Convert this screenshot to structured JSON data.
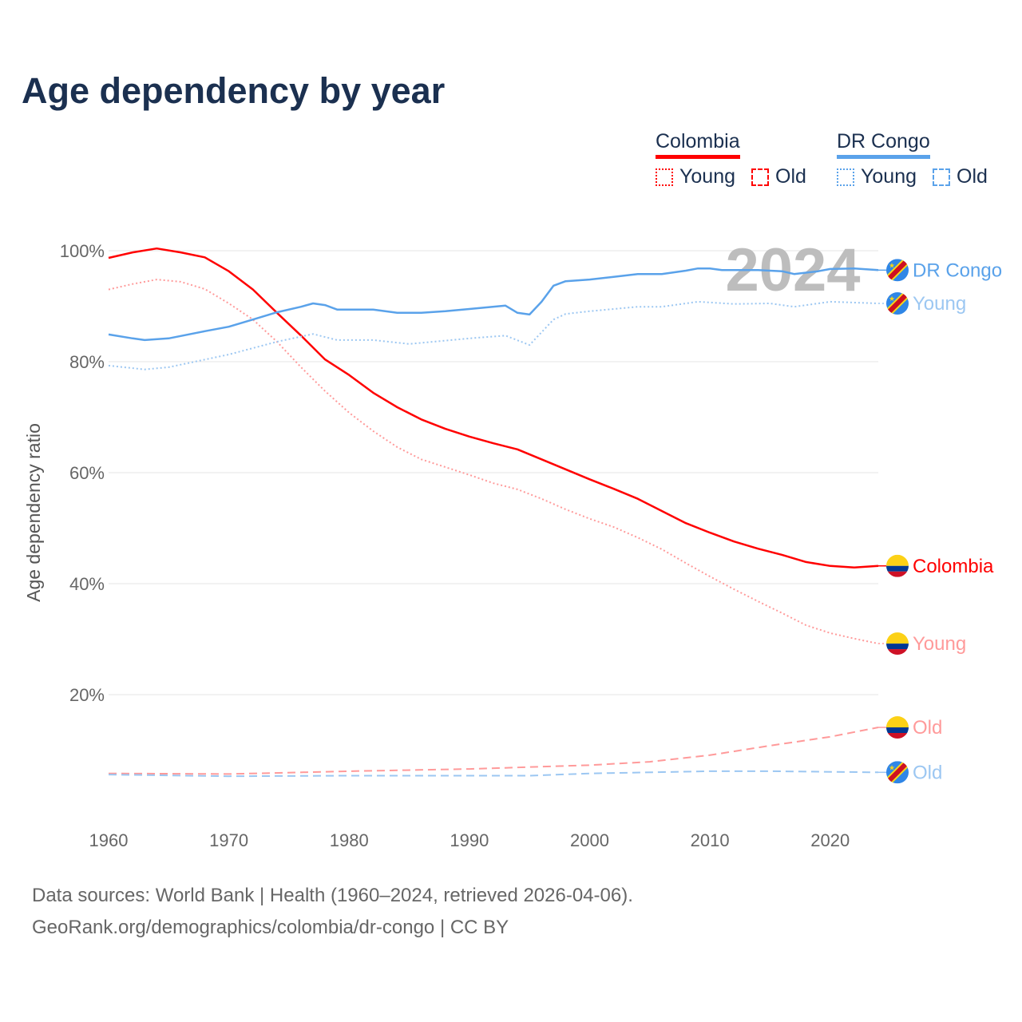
{
  "title": "Age dependency by year",
  "legend": {
    "groups": [
      {
        "name": "Colombia",
        "color": "#ff0000",
        "young": "Young",
        "old": "Old"
      },
      {
        "name": "DR Congo",
        "color": "#5aa2ea",
        "young": "Young",
        "old": "Old"
      }
    ]
  },
  "year_watermark": "2024",
  "footer": {
    "line1": "Data sources: World Bank | Health (1960–2024, retrieved 2026-04-06).",
    "line2": "GeoRank.org/demographics/colombia/dr-congo | CC BY"
  },
  "chart_data": {
    "type": "line",
    "title": "Age dependency by year",
    "xlabel": "",
    "ylabel": "Age dependency ratio",
    "xlim": [
      1960,
      2024
    ],
    "ylim": [
      0,
      100
    ],
    "x_ticks": [
      1960,
      1970,
      1980,
      1990,
      2000,
      2010,
      2020
    ],
    "y_ticks": [
      20,
      40,
      60,
      80,
      100
    ],
    "y_tick_labels": [
      "20%",
      "40%",
      "60%",
      "80%",
      "100%"
    ],
    "grid": true,
    "legend_position": "top-right",
    "series": [
      {
        "name": "Colombia",
        "end_label": "Colombia",
        "flag": "colombia",
        "color": "#ff0000",
        "style": "solid",
        "width": 2.5,
        "points": [
          [
            1960,
            98.7
          ],
          [
            1962,
            99.7
          ],
          [
            1964,
            100.4
          ],
          [
            1966,
            99.7
          ],
          [
            1968,
            98.8
          ],
          [
            1970,
            96.3
          ],
          [
            1972,
            93
          ],
          [
            1974,
            88.8
          ],
          [
            1976,
            84.7
          ],
          [
            1978,
            80.4
          ],
          [
            1980,
            77.6
          ],
          [
            1982,
            74.4
          ],
          [
            1984,
            71.8
          ],
          [
            1986,
            69.6
          ],
          [
            1988,
            67.9
          ],
          [
            1990,
            66.5
          ],
          [
            1992,
            65.3
          ],
          [
            1994,
            64.2
          ],
          [
            1996,
            62.4
          ],
          [
            1998,
            60.6
          ],
          [
            2000,
            58.8
          ],
          [
            2002,
            57.1
          ],
          [
            2004,
            55.3
          ],
          [
            2006,
            53.1
          ],
          [
            2008,
            50.9
          ],
          [
            2010,
            49.2
          ],
          [
            2012,
            47.6
          ],
          [
            2014,
            46.3
          ],
          [
            2016,
            45.2
          ],
          [
            2018,
            43.9
          ],
          [
            2020,
            43.2
          ],
          [
            2022,
            42.9
          ],
          [
            2024,
            43.2
          ]
        ]
      },
      {
        "name": "Colombia Young",
        "end_label": "Young",
        "flag": "colombia",
        "color": "#ff9a9a",
        "style": "dotted",
        "width": 2,
        "points": [
          [
            1960,
            93
          ],
          [
            1962,
            94
          ],
          [
            1964,
            94.8
          ],
          [
            1966,
            94.4
          ],
          [
            1968,
            93.1
          ],
          [
            1970,
            90.5
          ],
          [
            1972,
            87.6
          ],
          [
            1974,
            83.6
          ],
          [
            1976,
            79
          ],
          [
            1978,
            74.7
          ],
          [
            1980,
            70.8
          ],
          [
            1982,
            67.5
          ],
          [
            1984,
            64.6
          ],
          [
            1986,
            62.4
          ],
          [
            1988,
            61
          ],
          [
            1990,
            59.6
          ],
          [
            1992,
            58.1
          ],
          [
            1994,
            57
          ],
          [
            1996,
            55.3
          ],
          [
            1998,
            53.4
          ],
          [
            2000,
            51.7
          ],
          [
            2002,
            50.2
          ],
          [
            2004,
            48.3
          ],
          [
            2006,
            46.2
          ],
          [
            2008,
            43.7
          ],
          [
            2010,
            41.3
          ],
          [
            2012,
            39
          ],
          [
            2014,
            36.8
          ],
          [
            2016,
            34.7
          ],
          [
            2018,
            32.5
          ],
          [
            2020,
            31.1
          ],
          [
            2022,
            30.1
          ],
          [
            2024,
            29.2
          ]
        ]
      },
      {
        "name": "Colombia Old",
        "end_label": "Old",
        "flag": "colombia",
        "color": "#ff9a9a",
        "style": "dashed",
        "width": 2,
        "points": [
          [
            1960,
            5.8
          ],
          [
            1970,
            5.7
          ],
          [
            1980,
            6.2
          ],
          [
            1990,
            6.6
          ],
          [
            2000,
            7.3
          ],
          [
            2005,
            7.9
          ],
          [
            2010,
            9.1
          ],
          [
            2015,
            10.8
          ],
          [
            2020,
            12.4
          ],
          [
            2024,
            14.1
          ]
        ]
      },
      {
        "name": "DR Congo",
        "end_label": "DR Congo",
        "flag": "drcongo",
        "color": "#5aa2ea",
        "style": "solid",
        "width": 2.5,
        "points": [
          [
            1960,
            84.9
          ],
          [
            1962,
            84.2
          ],
          [
            1963,
            83.9
          ],
          [
            1965,
            84.2
          ],
          [
            1968,
            85.5
          ],
          [
            1970,
            86.3
          ],
          [
            1972,
            87.6
          ],
          [
            1974,
            88.9
          ],
          [
            1976,
            89.9
          ],
          [
            1977,
            90.5
          ],
          [
            1978,
            90.2
          ],
          [
            1979,
            89.4
          ],
          [
            1982,
            89.4
          ],
          [
            1984,
            88.8
          ],
          [
            1986,
            88.8
          ],
          [
            1988,
            89.1
          ],
          [
            1990,
            89.5
          ],
          [
            1993,
            90.1
          ],
          [
            1994,
            88.8
          ],
          [
            1995,
            88.5
          ],
          [
            1996,
            90.8
          ],
          [
            1997,
            93.7
          ],
          [
            1998,
            94.5
          ],
          [
            2000,
            94.8
          ],
          [
            2002,
            95.3
          ],
          [
            2004,
            95.8
          ],
          [
            2006,
            95.8
          ],
          [
            2008,
            96.4
          ],
          [
            2009,
            96.8
          ],
          [
            2010,
            96.8
          ],
          [
            2011,
            96.5
          ],
          [
            2014,
            96.5
          ],
          [
            2016,
            96.3
          ],
          [
            2017,
            95.8
          ],
          [
            2019,
            96.3
          ],
          [
            2020,
            96.7
          ],
          [
            2022,
            96.8
          ],
          [
            2024,
            96.5
          ]
        ]
      },
      {
        "name": "DR Congo Young",
        "end_label": "Young",
        "flag": "drcongo",
        "color": "#9cc7f2",
        "style": "dotted",
        "width": 2,
        "points": [
          [
            1960,
            79.3
          ],
          [
            1963,
            78.6
          ],
          [
            1965,
            79
          ],
          [
            1970,
            81.3
          ],
          [
            1974,
            83.6
          ],
          [
            1977,
            85
          ],
          [
            1979,
            83.9
          ],
          [
            1982,
            83.9
          ],
          [
            1985,
            83.2
          ],
          [
            1990,
            84.2
          ],
          [
            1993,
            84.7
          ],
          [
            1995,
            83
          ],
          [
            1997,
            87.6
          ],
          [
            1998,
            88.6
          ],
          [
            2000,
            89.1
          ],
          [
            2004,
            89.9
          ],
          [
            2006,
            89.9
          ],
          [
            2009,
            90.8
          ],
          [
            2012,
            90.4
          ],
          [
            2015,
            90.5
          ],
          [
            2017,
            89.9
          ],
          [
            2020,
            90.8
          ],
          [
            2024,
            90.5
          ]
        ]
      },
      {
        "name": "DR Congo Old",
        "end_label": "Old",
        "flag": "drcongo",
        "color": "#9cc7f2",
        "style": "dashed",
        "width": 2,
        "points": [
          [
            1960,
            5.6
          ],
          [
            1970,
            5.3
          ],
          [
            1980,
            5.4
          ],
          [
            1995,
            5.4
          ],
          [
            2000,
            5.8
          ],
          [
            2010,
            6.2
          ],
          [
            2015,
            6.2
          ],
          [
            2024,
            6.0
          ]
        ]
      }
    ]
  }
}
